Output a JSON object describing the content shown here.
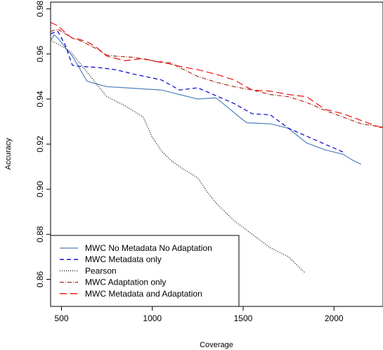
{
  "chart_data": {
    "type": "line",
    "xlabel": "Coverage",
    "ylabel": "Accuracy",
    "xlim": [
      440,
      2270
    ],
    "ylim": [
      0.848,
      0.983
    ],
    "x_ticks": [
      500,
      1000,
      1500,
      2000
    ],
    "y_ticks": [
      0.86,
      0.88,
      0.9,
      0.92,
      0.94,
      0.96,
      0.98
    ],
    "x_tick_labels": [
      "500",
      "1000",
      "1500",
      "2000"
    ],
    "y_tick_labels": [
      "0.86",
      "0.88",
      "0.90",
      "0.92",
      "0.94",
      "0.96",
      "0.98"
    ],
    "legend_position": "bottom-left",
    "series": [
      {
        "name": "MWC No Metadata No Adaptation",
        "color": "#4f81bd",
        "dash": "solid",
        "points": [
          [
            440,
            0.966
          ],
          [
            460,
            0.9685
          ],
          [
            480,
            0.967
          ],
          [
            520,
            0.963
          ],
          [
            560,
            0.959
          ],
          [
            600,
            0.9535
          ],
          [
            640,
            0.948
          ],
          [
            680,
            0.947
          ],
          [
            750,
            0.9455
          ],
          [
            850,
            0.945
          ],
          [
            950,
            0.9445
          ],
          [
            1050,
            0.944
          ],
          [
            1150,
            0.942
          ],
          [
            1250,
            0.94
          ],
          [
            1350,
            0.9405
          ],
          [
            1420,
            0.936
          ],
          [
            1480,
            0.932
          ],
          [
            1520,
            0.9295
          ],
          [
            1600,
            0.9292
          ],
          [
            1650,
            0.929
          ],
          [
            1750,
            0.927
          ],
          [
            1850,
            0.9205
          ],
          [
            1950,
            0.9175
          ],
          [
            2050,
            0.9155
          ],
          [
            2100,
            0.913
          ],
          [
            2150,
            0.911
          ]
        ]
      },
      {
        "name": "MWC Metadata only",
        "color": "#0000cc",
        "dash": "6,4",
        "points": [
          [
            440,
            0.969
          ],
          [
            480,
            0.97
          ],
          [
            520,
            0.964
          ],
          [
            560,
            0.955
          ],
          [
            600,
            0.9545
          ],
          [
            700,
            0.954
          ],
          [
            800,
            0.953
          ],
          [
            900,
            0.951
          ],
          [
            1050,
            0.9485
          ],
          [
            1150,
            0.944
          ],
          [
            1250,
            0.945
          ],
          [
            1350,
            0.9415
          ],
          [
            1450,
            0.938
          ],
          [
            1550,
            0.9335
          ],
          [
            1650,
            0.933
          ],
          [
            1750,
            0.927
          ],
          [
            1850,
            0.9235
          ],
          [
            1950,
            0.92
          ],
          [
            2050,
            0.9165
          ]
        ]
      },
      {
        "name": "Pearson",
        "color": "#000000",
        "dash": "1,2",
        "points": [
          [
            440,
            0.966
          ],
          [
            500,
            0.9635
          ],
          [
            550,
            0.961
          ],
          [
            600,
            0.956
          ],
          [
            650,
            0.951
          ],
          [
            700,
            0.946
          ],
          [
            750,
            0.941
          ],
          [
            850,
            0.937
          ],
          [
            950,
            0.932
          ],
          [
            1000,
            0.923
          ],
          [
            1050,
            0.917
          ],
          [
            1100,
            0.913
          ],
          [
            1150,
            0.91
          ],
          [
            1250,
            0.905
          ],
          [
            1300,
            0.899
          ],
          [
            1350,
            0.894
          ],
          [
            1400,
            0.89
          ],
          [
            1450,
            0.886
          ],
          [
            1500,
            0.883
          ],
          [
            1550,
            0.88
          ],
          [
            1600,
            0.877
          ],
          [
            1650,
            0.874
          ],
          [
            1700,
            0.872
          ],
          [
            1750,
            0.87
          ],
          [
            1800,
            0.866
          ],
          [
            1840,
            0.863
          ]
        ]
      },
      {
        "name": "MWC Adaptation only",
        "color": "#a0301a",
        "dash": "6,2,1,2",
        "points": [
          [
            440,
            0.97
          ],
          [
            480,
            0.971
          ],
          [
            520,
            0.969
          ],
          [
            560,
            0.967
          ],
          [
            600,
            0.966
          ],
          [
            650,
            0.964
          ],
          [
            700,
            0.962
          ],
          [
            750,
            0.9595
          ],
          [
            800,
            0.959
          ],
          [
            900,
            0.9585
          ],
          [
            1000,
            0.957
          ],
          [
            1100,
            0.956
          ],
          [
            1200,
            0.952
          ],
          [
            1250,
            0.95
          ],
          [
            1350,
            0.9475
          ],
          [
            1450,
            0.9455
          ],
          [
            1550,
            0.944
          ],
          [
            1650,
            0.942
          ],
          [
            1750,
            0.941
          ],
          [
            1850,
            0.9385
          ],
          [
            1950,
            0.935
          ],
          [
            2050,
            0.932
          ],
          [
            2150,
            0.929
          ],
          [
            2270,
            0.9275
          ]
        ]
      },
      {
        "name": "MWC Metadata and Adaptation",
        "color": "#ee1111",
        "dash": "10,5",
        "points": [
          [
            440,
            0.974
          ],
          [
            480,
            0.9725
          ],
          [
            520,
            0.9695
          ],
          [
            560,
            0.967
          ],
          [
            600,
            0.9665
          ],
          [
            650,
            0.965
          ],
          [
            700,
            0.9625
          ],
          [
            750,
            0.959
          ],
          [
            850,
            0.957
          ],
          [
            950,
            0.958
          ],
          [
            1000,
            0.957
          ],
          [
            1100,
            0.9555
          ],
          [
            1150,
            0.9545
          ],
          [
            1250,
            0.953
          ],
          [
            1350,
            0.951
          ],
          [
            1450,
            0.9485
          ],
          [
            1550,
            0.944
          ],
          [
            1650,
            0.9435
          ],
          [
            1750,
            0.942
          ],
          [
            1850,
            0.941
          ],
          [
            1950,
            0.9355
          ],
          [
            2050,
            0.9335
          ],
          [
            2150,
            0.9305
          ],
          [
            2270,
            0.927
          ]
        ]
      }
    ]
  }
}
